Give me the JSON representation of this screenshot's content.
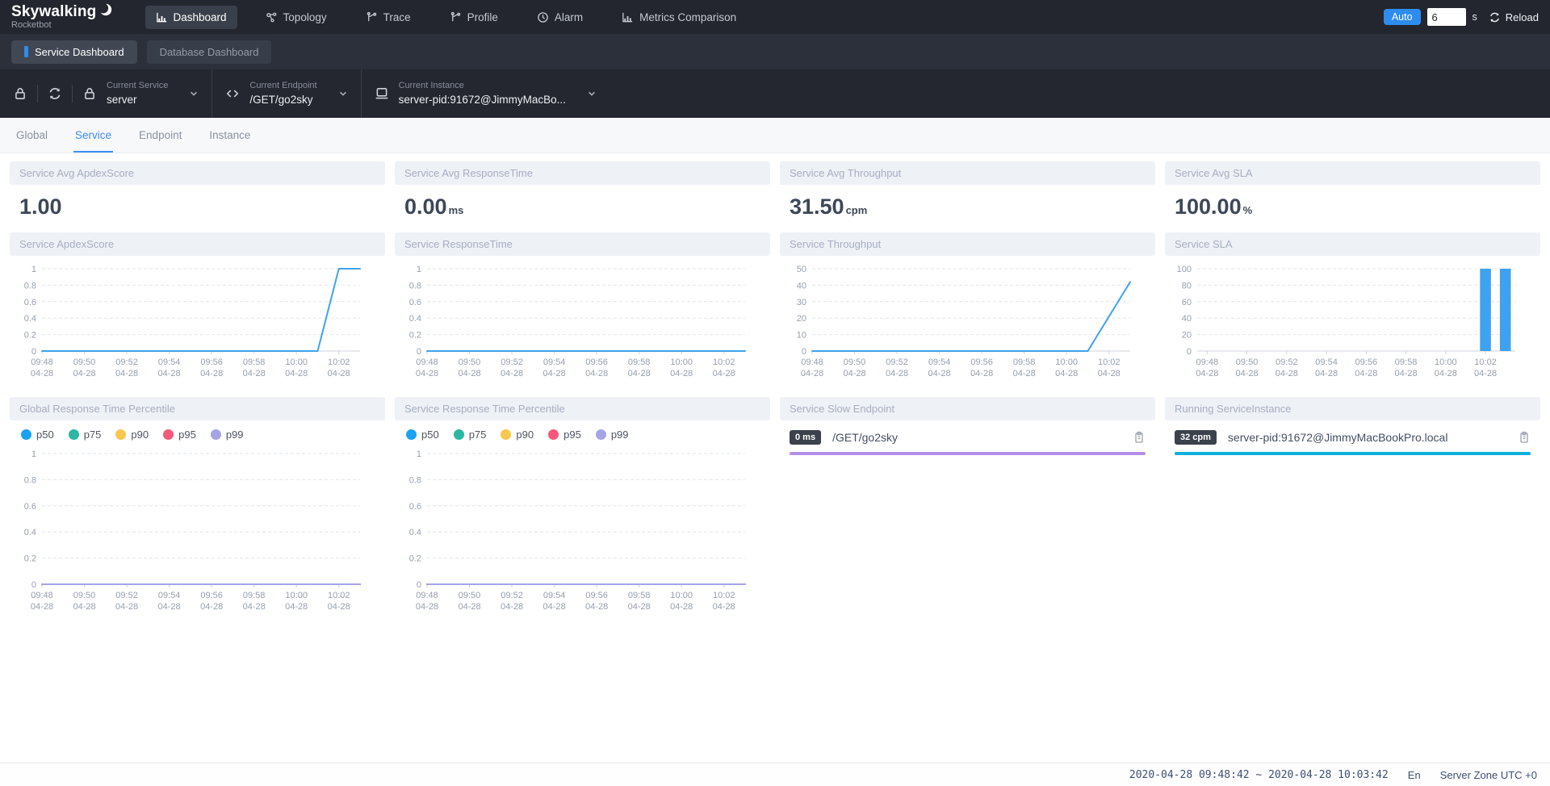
{
  "colors": {
    "accent_blue": "#2d8cf0",
    "tab_active": "#3e8df5",
    "chart_line": "#3fa2f0",
    "sla_bar": "#3fa2f0",
    "slow_endpoint_bar": "#b48fe8",
    "instance_bar": "#10b0dc",
    "percentile_palette": [
      "#1aa2f3",
      "#2cb7a2",
      "#f7c74e",
      "#f6587a",
      "#a6a4e6"
    ]
  },
  "brand": {
    "name": "Skywalking",
    "subtitle": "Rocketbot",
    "logo_icon": "crescent-icon"
  },
  "topnav": {
    "items": [
      {
        "label": "Dashboard",
        "icon": "bar-chart-icon",
        "active": true
      },
      {
        "label": "Topology",
        "icon": "topology-icon",
        "active": false
      },
      {
        "label": "Trace",
        "icon": "branch-icon",
        "active": false
      },
      {
        "label": "Profile",
        "icon": "branch-icon",
        "active": false
      },
      {
        "label": "Alarm",
        "icon": "clock-icon",
        "active": false
      },
      {
        "label": "Metrics Comparison",
        "icon": "bar-chart-icon",
        "active": false
      }
    ],
    "auto_label": "Auto",
    "interval_value": "6",
    "interval_unit": "s",
    "reload_label": "Reload",
    "reload_icon": "refresh-icon"
  },
  "dashboard_switch": {
    "items": [
      {
        "label": "Service Dashboard",
        "active": true
      },
      {
        "label": "Database Dashboard",
        "active": false
      }
    ]
  },
  "selector_toolbar_icons": [
    "lock-icon",
    "refresh-icon"
  ],
  "selectors": {
    "service": {
      "label": "Current Service",
      "value": "server",
      "icon": "lock-icon"
    },
    "endpoint": {
      "label": "Current Endpoint",
      "value": "/GET/go2sky",
      "icon": "code-icon"
    },
    "instance": {
      "label": "Current Instance",
      "value": "server-pid:91672@JimmyMacBo...",
      "icon": "laptop-icon"
    }
  },
  "view_tabs": {
    "items": [
      {
        "label": "Global",
        "active": false
      },
      {
        "label": "Service",
        "active": true
      },
      {
        "label": "Endpoint",
        "active": false
      },
      {
        "label": "Instance",
        "active": false
      }
    ]
  },
  "metric_cards": [
    {
      "title": "Service Avg ApdexScore",
      "value": "1.00",
      "unit": ""
    },
    {
      "title": "Service Avg ResponseTime",
      "value": "0.00",
      "unit": "ms"
    },
    {
      "title": "Service Avg Throughput",
      "value": "31.50",
      "unit": "cpm"
    },
    {
      "title": "Service Avg SLA",
      "value": "100.00",
      "unit": "%"
    }
  ],
  "chart_data": [
    {
      "type": "line",
      "title": "Service ApdexScore",
      "x": [
        "09:48",
        "09:49",
        "09:50",
        "09:51",
        "09:52",
        "09:53",
        "09:54",
        "09:55",
        "09:56",
        "09:57",
        "09:58",
        "09:59",
        "10:00",
        "10:01",
        "10:02",
        "10:03"
      ],
      "x_date": "04-28",
      "tick_every": 2,
      "ylim": [
        0,
        1
      ],
      "yticks": [
        0,
        0.2,
        0.4,
        0.6,
        0.8,
        1
      ],
      "grid_dashed": true,
      "series": [
        {
          "name": "ApdexScore",
          "color": "#3fa2f0",
          "values": [
            0,
            0,
            0,
            0,
            0,
            0,
            0,
            0,
            0,
            0,
            0,
            0,
            0,
            0,
            1,
            1
          ]
        }
      ]
    },
    {
      "type": "line",
      "title": "Service ResponseTime",
      "x": [
        "09:48",
        "09:49",
        "09:50",
        "09:51",
        "09:52",
        "09:53",
        "09:54",
        "09:55",
        "09:56",
        "09:57",
        "09:58",
        "09:59",
        "10:00",
        "10:01",
        "10:02",
        "10:03"
      ],
      "x_date": "04-28",
      "tick_every": 2,
      "ylim": [
        0,
        1
      ],
      "yticks": [
        0,
        0.2,
        0.4,
        0.6,
        0.8,
        1
      ],
      "grid_dashed": true,
      "series": [
        {
          "name": "ResponseTime",
          "color": "#3fa2f0",
          "values": [
            0,
            0,
            0,
            0,
            0,
            0,
            0,
            0,
            0,
            0,
            0,
            0,
            0,
            0,
            0,
            0
          ]
        }
      ]
    },
    {
      "type": "line",
      "title": "Service Throughput",
      "x": [
        "09:48",
        "09:49",
        "09:50",
        "09:51",
        "09:52",
        "09:53",
        "09:54",
        "09:55",
        "09:56",
        "09:57",
        "09:58",
        "09:59",
        "10:00",
        "10:01",
        "10:02",
        "10:03"
      ],
      "x_date": "04-28",
      "tick_every": 2,
      "ylim": [
        0,
        50
      ],
      "yticks": [
        0,
        10,
        20,
        30,
        40,
        50
      ],
      "grid_dashed": true,
      "series": [
        {
          "name": "Throughput",
          "color": "#3fa2f0",
          "values": [
            0,
            0,
            0,
            0,
            0,
            0,
            0,
            0,
            0,
            0,
            0,
            0,
            0,
            0,
            21,
            42
          ]
        }
      ]
    },
    {
      "type": "bar",
      "title": "Service SLA",
      "x": [
        "09:48",
        "09:49",
        "09:50",
        "09:51",
        "09:52",
        "09:53",
        "09:54",
        "09:55",
        "09:56",
        "09:57",
        "09:58",
        "09:59",
        "10:00",
        "10:01",
        "10:02",
        "10:03"
      ],
      "x_date": "04-28",
      "tick_every": 2,
      "ylim": [
        0,
        100
      ],
      "yticks": [
        0,
        20,
        40,
        60,
        80,
        100
      ],
      "grid_dashed": true,
      "series": [
        {
          "name": "SLA",
          "color": "#3fa2f0",
          "values": [
            0,
            0,
            0,
            0,
            0,
            0,
            0,
            0,
            0,
            0,
            0,
            0,
            0,
            0,
            100,
            100
          ]
        }
      ]
    },
    {
      "type": "line",
      "title": "Global Response Time Percentile",
      "legend": [
        "p50",
        "p75",
        "p90",
        "p95",
        "p99"
      ],
      "legend_position": "top",
      "x": [
        "09:48",
        "09:49",
        "09:50",
        "09:51",
        "09:52",
        "09:53",
        "09:54",
        "09:55",
        "09:56",
        "09:57",
        "09:58",
        "09:59",
        "10:00",
        "10:01",
        "10:02",
        "10:03"
      ],
      "x_date": "04-28",
      "tick_every": 2,
      "ylim": [
        0,
        1
      ],
      "yticks": [
        0,
        0.2,
        0.4,
        0.6,
        0.8,
        1
      ],
      "grid_dashed": true,
      "series": [
        {
          "name": "p50",
          "color": "#1aa2f3",
          "values": [
            0,
            0,
            0,
            0,
            0,
            0,
            0,
            0,
            0,
            0,
            0,
            0,
            0,
            0,
            0,
            0
          ]
        },
        {
          "name": "p75",
          "color": "#2cb7a2",
          "values": [
            0,
            0,
            0,
            0,
            0,
            0,
            0,
            0,
            0,
            0,
            0,
            0,
            0,
            0,
            0,
            0
          ]
        },
        {
          "name": "p90",
          "color": "#f7c74e",
          "values": [
            0,
            0,
            0,
            0,
            0,
            0,
            0,
            0,
            0,
            0,
            0,
            0,
            0,
            0,
            0,
            0
          ]
        },
        {
          "name": "p95",
          "color": "#f6587a",
          "values": [
            0,
            0,
            0,
            0,
            0,
            0,
            0,
            0,
            0,
            0,
            0,
            0,
            0,
            0,
            0,
            0
          ]
        },
        {
          "name": "p99",
          "color": "#a6a4e6",
          "values": [
            0,
            0,
            0,
            0,
            0,
            0,
            0,
            0,
            0,
            0,
            0,
            0,
            0,
            0,
            0,
            0
          ]
        }
      ]
    },
    {
      "type": "line",
      "title": "Service Response Time Percentile",
      "legend": [
        "p50",
        "p75",
        "p90",
        "p95",
        "p99"
      ],
      "legend_position": "top",
      "x": [
        "09:48",
        "09:49",
        "09:50",
        "09:51",
        "09:52",
        "09:53",
        "09:54",
        "09:55",
        "09:56",
        "09:57",
        "09:58",
        "09:59",
        "10:00",
        "10:01",
        "10:02",
        "10:03"
      ],
      "x_date": "04-28",
      "tick_every": 2,
      "ylim": [
        0,
        1
      ],
      "yticks": [
        0,
        0.2,
        0.4,
        0.6,
        0.8,
        1
      ],
      "grid_dashed": true,
      "series": [
        {
          "name": "p50",
          "color": "#1aa2f3",
          "values": [
            0,
            0,
            0,
            0,
            0,
            0,
            0,
            0,
            0,
            0,
            0,
            0,
            0,
            0,
            0,
            0
          ]
        },
        {
          "name": "p75",
          "color": "#2cb7a2",
          "values": [
            0,
            0,
            0,
            0,
            0,
            0,
            0,
            0,
            0,
            0,
            0,
            0,
            0,
            0,
            0,
            0
          ]
        },
        {
          "name": "p90",
          "color": "#f7c74e",
          "values": [
            0,
            0,
            0,
            0,
            0,
            0,
            0,
            0,
            0,
            0,
            0,
            0,
            0,
            0,
            0,
            0
          ]
        },
        {
          "name": "p95",
          "color": "#f6587a",
          "values": [
            0,
            0,
            0,
            0,
            0,
            0,
            0,
            0,
            0,
            0,
            0,
            0,
            0,
            0,
            0,
            0
          ]
        },
        {
          "name": "p99",
          "color": "#a6a4e6",
          "values": [
            0,
            0,
            0,
            0,
            0,
            0,
            0,
            0,
            0,
            0,
            0,
            0,
            0,
            0,
            0,
            0
          ]
        }
      ]
    }
  ],
  "list_cards": {
    "slow_endpoint": {
      "title": "Service Slow Endpoint",
      "items": [
        {
          "badge": "0 ms",
          "label": "/GET/go2sky",
          "bar_color_key": "slow_endpoint_bar",
          "copy_icon": "clipboard-icon"
        }
      ]
    },
    "instance": {
      "title": "Running ServiceInstance",
      "items": [
        {
          "badge": "32 cpm",
          "label": "server-pid:91672@JimmyMacBookPro.local",
          "bar_color_key": "instance_bar",
          "copy_icon": "clipboard-icon"
        }
      ]
    }
  },
  "footer": {
    "time_range": "2020-04-28 09:48:42 ~ 2020-04-28 10:03:42",
    "language": "En",
    "server_zone": "Server Zone UTC +0"
  }
}
